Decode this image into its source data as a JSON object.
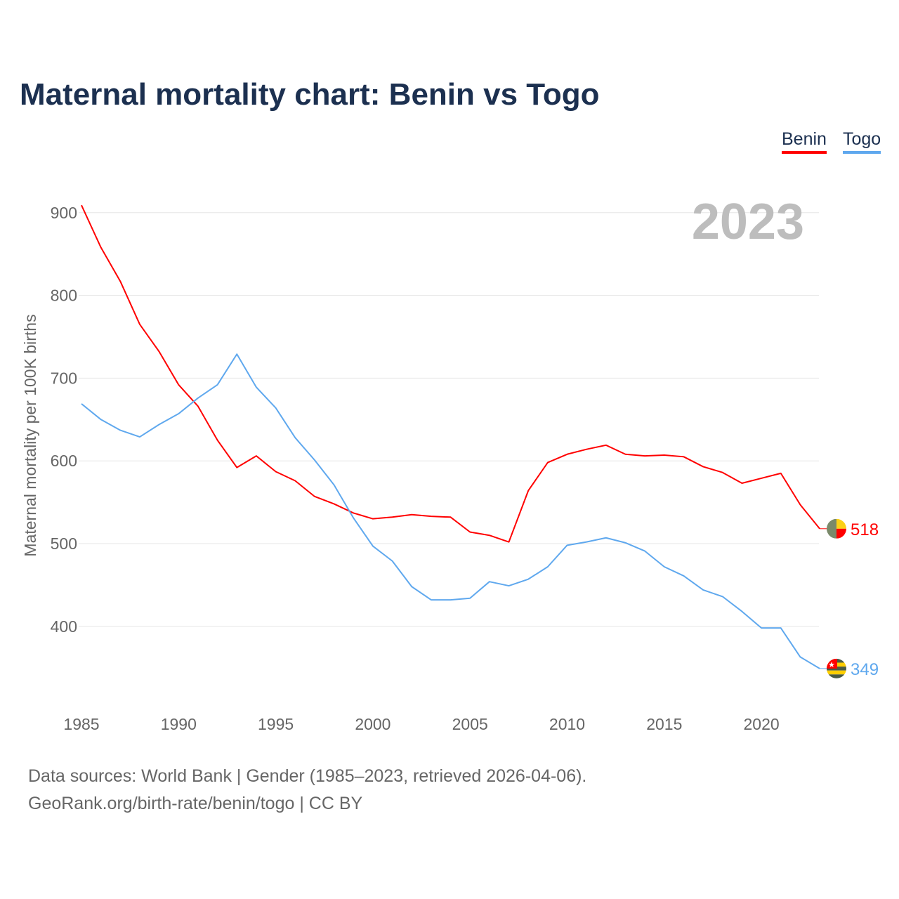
{
  "title": "Maternal mortality chart: Benin vs Togo",
  "legend": [
    "Benin",
    "Togo"
  ],
  "year_label": "2023",
  "source_line1": "Data sources: World Bank | Gender (1985–2023, retrieved 2026-04-06).",
  "source_line2": "GeoRank.org/birth-rate/benin/togo | CC BY",
  "chart_data": {
    "type": "line",
    "title": "Maternal mortality chart: Benin vs Togo",
    "xlabel": "",
    "ylabel": "Maternal mortality per 100K births",
    "xlim": [
      1985,
      2023
    ],
    "ylim": [
      335,
      915
    ],
    "xticks": [
      1985,
      1990,
      1995,
      2000,
      2005,
      2010,
      2015,
      2020
    ],
    "yticks": [
      400,
      500,
      600,
      700,
      800,
      900
    ],
    "grid": true,
    "legend_position": "top-right",
    "x": [
      1985,
      1986,
      1987,
      1988,
      1989,
      1990,
      1991,
      1992,
      1993,
      1994,
      1995,
      1996,
      1997,
      1998,
      1999,
      2000,
      2001,
      2002,
      2003,
      2004,
      2005,
      2006,
      2007,
      2008,
      2009,
      2010,
      2011,
      2012,
      2013,
      2014,
      2015,
      2016,
      2017,
      2018,
      2019,
      2020,
      2021,
      2022,
      2023
    ],
    "series": [
      {
        "name": "Benin",
        "color": "#ff0000",
        "end_label": "518",
        "values": [
          909,
          858,
          817,
          765,
          732,
          692,
          666,
          625,
          592,
          606,
          587,
          576,
          557,
          548,
          537,
          530,
          532,
          535,
          533,
          532,
          514,
          510,
          502,
          564,
          598,
          608,
          614,
          619,
          608,
          606,
          607,
          605,
          593,
          586,
          573,
          579,
          585,
          547,
          518
        ]
      },
      {
        "name": "Togo",
        "color": "#5fa8ee",
        "end_label": "349",
        "values": [
          669,
          650,
          637,
          629,
          644,
          657,
          676,
          692,
          729,
          689,
          664,
          628,
          601,
          571,
          531,
          497,
          479,
          448,
          432,
          432,
          434,
          454,
          449,
          457,
          472,
          498,
          502,
          507,
          501,
          491,
          472,
          461,
          444,
          436,
          418,
          398,
          398,
          363,
          349
        ]
      }
    ]
  }
}
